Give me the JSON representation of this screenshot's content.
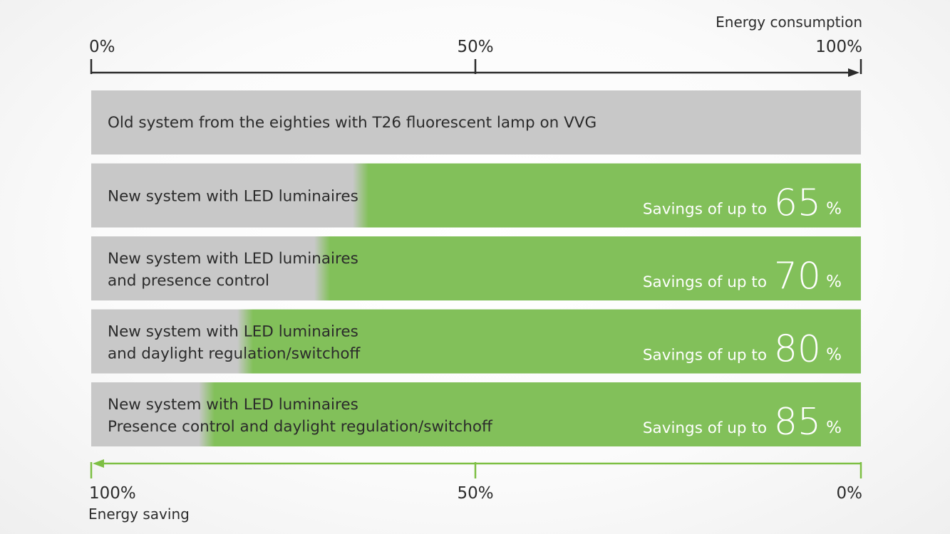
{
  "chart_data": {
    "type": "bar",
    "top_axis": {
      "name": "Energy consumption",
      "ticks": [
        "0%",
        "50%",
        "100%"
      ],
      "range": [
        0,
        100
      ],
      "color": "#2b2b2b"
    },
    "bottom_axis": {
      "name": "Energy saving",
      "ticks": [
        "100%",
        "50%",
        "0%"
      ],
      "range": [
        100,
        0
      ],
      "color": "#7dbf43"
    },
    "colors": {
      "consumption": "#c8c8c8",
      "savings": "#82c05a"
    },
    "savings_prefix": "Savings of up to",
    "percent_sign": "%",
    "bars": [
      {
        "lines": [
          "Old system from the eighties with T26 fluorescent lamp on VVG"
        ],
        "consumption": 100,
        "savings": null
      },
      {
        "lines": [
          "New system with LED luminaires"
        ],
        "consumption": 35,
        "savings": 65
      },
      {
        "lines": [
          "New system with LED luminaires",
          "and presence control"
        ],
        "consumption": 30,
        "savings": 70
      },
      {
        "lines": [
          "New system with LED luminaires",
          "and daylight regulation/switchoff"
        ],
        "consumption": 20,
        "savings": 80
      },
      {
        "lines": [
          "New system with LED luminaires",
          "Presence control and daylight regulation/switchoff"
        ],
        "consumption": 15,
        "savings": 85
      }
    ]
  }
}
